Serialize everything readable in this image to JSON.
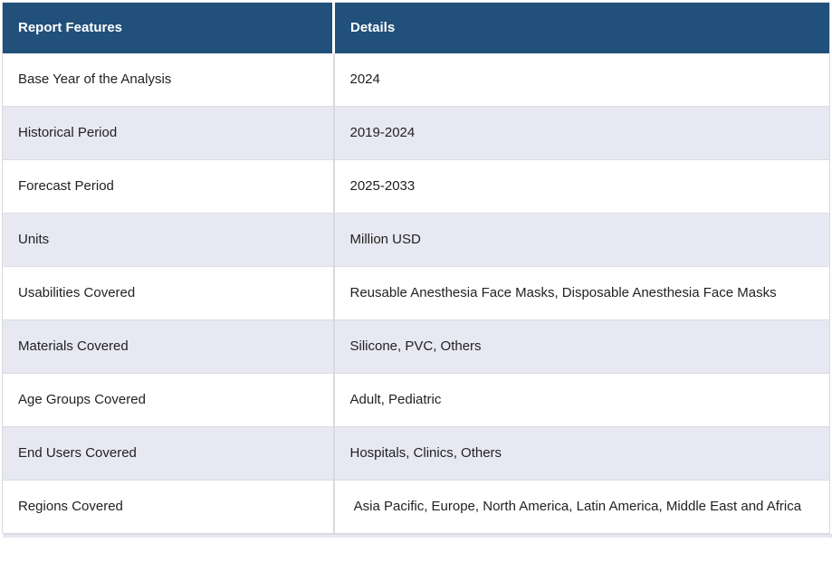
{
  "colors": {
    "header_bg": "#21507B",
    "header_text": "#FFFFFF",
    "row_bg": "#FFFFFF",
    "row_alt_bg": "#E7E8F2",
    "border": "#D9D9DE",
    "body_text": "#222222"
  },
  "table": {
    "columns": [
      "Report Features",
      "Details"
    ],
    "rows": [
      {
        "feature": "Base Year of the Analysis",
        "detail": "2024"
      },
      {
        "feature": "Historical Period",
        "detail": "2019-2024"
      },
      {
        "feature": "Forecast Period",
        "detail": "2025-2033"
      },
      {
        "feature": "Units",
        "detail": "Million USD"
      },
      {
        "feature": "Usabilities Covered",
        "detail": "Reusable Anesthesia Face Masks, Disposable Anesthesia Face Masks"
      },
      {
        "feature": "Materials Covered",
        "detail": "Silicone, PVC, Others"
      },
      {
        "feature": "Age Groups Covered",
        "detail": "Adult, Pediatric"
      },
      {
        "feature": "End Users Covered",
        "detail": "Hospitals, Clinics, Others"
      },
      {
        "feature": "Regions Covered",
        "detail": " Asia Pacific, Europe, North America, Latin America, Middle East and Africa"
      }
    ]
  }
}
